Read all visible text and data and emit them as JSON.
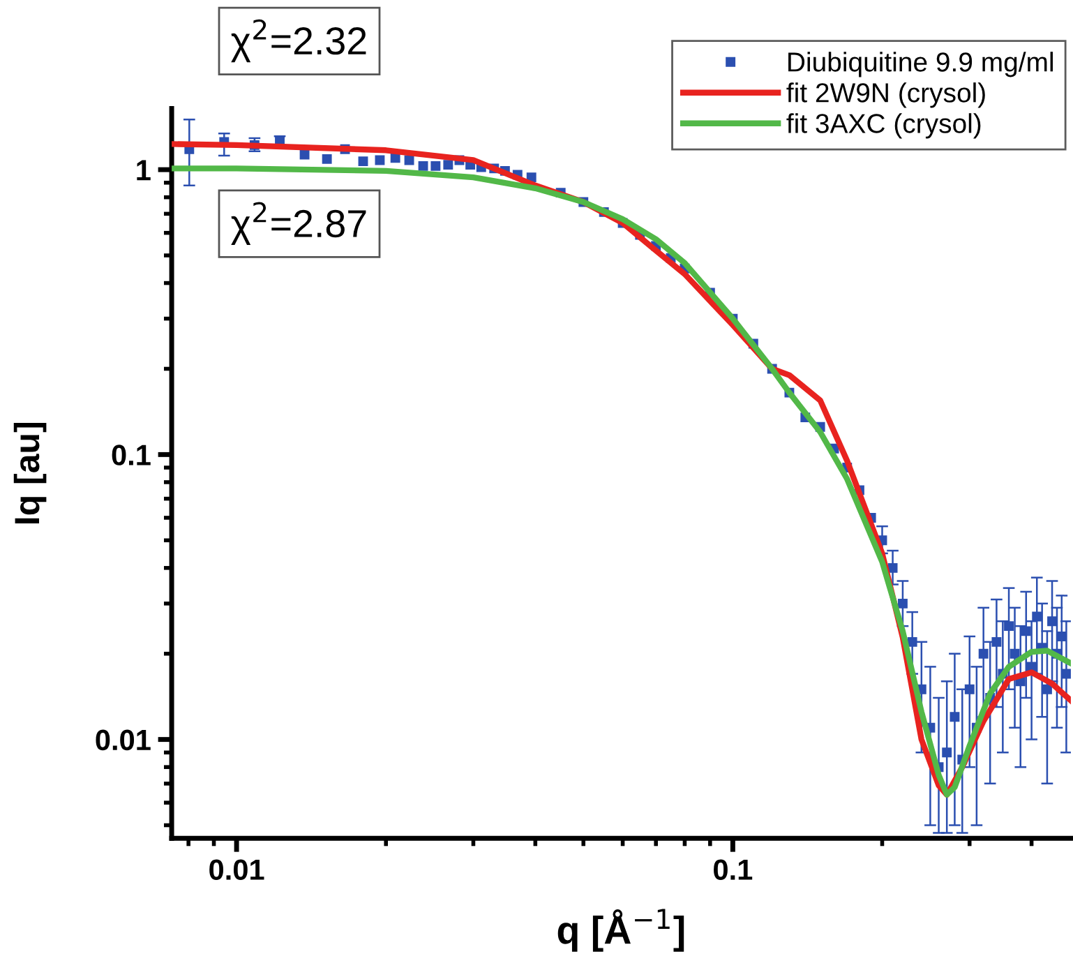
{
  "chart_data": {
    "type": "scatter",
    "xlabel": "q [Å$^{−1}$]",
    "ylabel": "Iq [au]",
    "log": "xy",
    "xlim": [
      0.0074,
      0.48
    ],
    "ylim": [
      0.0045,
      1.64
    ],
    "xticks": [
      0.01,
      0.1
    ],
    "yticks": [
      0.01,
      0.1,
      1
    ],
    "grid": false,
    "legend": "top right",
    "annotations": [
      "χ$^{2}$=2.32",
      "χ$^{2}$=2.87"
    ],
    "series": [
      {
        "name": "Diubiquitine 9.9 mg/ml",
        "marker": "square",
        "color": "#2b4fb0",
        "x": [
          0.00803,
          0.00944,
          0.01087,
          0.01222,
          0.01371,
          0.01521,
          0.01654,
          0.01799,
          0.01944,
          0.02089,
          0.02228,
          0.02377,
          0.02518,
          0.02669,
          0.02812,
          0.02958,
          0.03112,
          0.03304,
          0.03475,
          0.03683,
          0.03928,
          0.045,
          0.05,
          0.055,
          0.06,
          0.065,
          0.07,
          0.075,
          0.08,
          0.09,
          0.1,
          0.11,
          0.12,
          0.13,
          0.14,
          0.15,
          0.16,
          0.17,
          0.18,
          0.19,
          0.2,
          0.21,
          0.22,
          0.23,
          0.24,
          0.25,
          0.26,
          0.27,
          0.28,
          0.29,
          0.3,
          0.31,
          0.32,
          0.33,
          0.34,
          0.35,
          0.36,
          0.37,
          0.38,
          0.39,
          0.4,
          0.41,
          0.42,
          0.43,
          0.44,
          0.45,
          0.46,
          0.47
        ],
        "values": [
          1.18,
          1.25,
          1.22,
          1.26,
          1.13,
          1.09,
          1.18,
          1.07,
          1.08,
          1.1,
          1.08,
          1.03,
          1.03,
          1.04,
          1.08,
          1.04,
          1.02,
          1.01,
          0.99,
          0.96,
          0.94,
          0.83,
          0.77,
          0.71,
          0.65,
          0.59,
          0.54,
          0.49,
          0.45,
          0.37,
          0.3,
          0.245,
          0.2,
          0.165,
          0.135,
          0.125,
          0.105,
          0.09,
          0.075,
          0.06,
          0.05,
          0.04,
          0.03,
          0.022,
          0.015,
          0.011,
          0.008,
          0.009,
          0.012,
          0.0085,
          0.015,
          0.011,
          0.02,
          0.014,
          0.022,
          0.017,
          0.025,
          0.02,
          0.016,
          0.024,
          0.018,
          0.027,
          0.021,
          0.015,
          0.026,
          0.02,
          0.023,
          0.017
        ],
        "errors": [
          [
            0.88,
            1.5
          ],
          [
            1.12,
            1.34
          ],
          [
            1.16,
            1.29
          ],
          [
            1.22,
            1.31
          ],
          null,
          null,
          null,
          null,
          null,
          null,
          null,
          null,
          null,
          null,
          null,
          null,
          null,
          null,
          null,
          null,
          null,
          null,
          null,
          null,
          null,
          null,
          null,
          null,
          null,
          null,
          null,
          null,
          null,
          null,
          null,
          null,
          null,
          null,
          null,
          null,
          [
            0.045,
            0.056
          ],
          [
            0.035,
            0.046
          ],
          [
            0.025,
            0.036
          ],
          [
            0.017,
            0.028
          ],
          [
            0.009,
            0.022
          ],
          [
            0.005,
            0.018
          ],
          [
            0.0047,
            0.014
          ],
          [
            0.0047,
            0.016
          ],
          [
            0.005,
            0.02
          ],
          [
            0.0047,
            0.015
          ],
          [
            0.008,
            0.023
          ],
          [
            0.005,
            0.018
          ],
          [
            0.012,
            0.029
          ],
          [
            0.007,
            0.022
          ],
          [
            0.013,
            0.031
          ],
          [
            0.009,
            0.026
          ],
          [
            0.015,
            0.034
          ],
          [
            0.011,
            0.029
          ],
          [
            0.008,
            0.025
          ],
          [
            0.014,
            0.033
          ],
          [
            0.01,
            0.026
          ],
          [
            0.017,
            0.037
          ],
          [
            0.012,
            0.03
          ],
          [
            0.007,
            0.024
          ],
          [
            0.016,
            0.036
          ],
          [
            0.011,
            0.029
          ],
          [
            0.013,
            0.032
          ],
          [
            0.009,
            0.026
          ]
        ]
      },
      {
        "name": "fit 2W9N (crysol)",
        "type": "line",
        "line_style": "solid",
        "color": "#e8231f",
        "x": [
          0.0074,
          0.01,
          0.02,
          0.03,
          0.04,
          0.05,
          0.06,
          0.07,
          0.08,
          0.1,
          0.12,
          0.13,
          0.15,
          0.17,
          0.2,
          0.22,
          0.24,
          0.26,
          0.27,
          0.29,
          0.32,
          0.36,
          0.4,
          0.44,
          0.48
        ],
        "values": [
          1.23,
          1.22,
          1.17,
          1.08,
          0.88,
          0.77,
          0.65,
          0.52,
          0.43,
          0.285,
          0.2,
          0.19,
          0.155,
          0.095,
          0.045,
          0.0228,
          0.01,
          0.0069,
          0.0064,
          0.008,
          0.0116,
          0.0163,
          0.0172,
          0.0157,
          0.0137
        ]
      },
      {
        "name": "fit 3AXC (crysol)",
        "type": "line",
        "line_style": "solid",
        "color": "#52b848",
        "x": [
          0.0074,
          0.01,
          0.02,
          0.03,
          0.04,
          0.05,
          0.06,
          0.07,
          0.08,
          0.1,
          0.12,
          0.13,
          0.15,
          0.17,
          0.2,
          0.22,
          0.24,
          0.26,
          0.27,
          0.28,
          0.3,
          0.33,
          0.36,
          0.4,
          0.43,
          0.48
        ],
        "values": [
          1.01,
          1.01,
          0.99,
          0.94,
          0.86,
          0.77,
          0.67,
          0.57,
          0.47,
          0.3,
          0.2,
          0.165,
          0.12,
          0.082,
          0.042,
          0.024,
          0.0125,
          0.0075,
          0.0064,
          0.0068,
          0.0095,
          0.0145,
          0.018,
          0.0203,
          0.0205,
          0.0185
        ]
      }
    ]
  }
}
